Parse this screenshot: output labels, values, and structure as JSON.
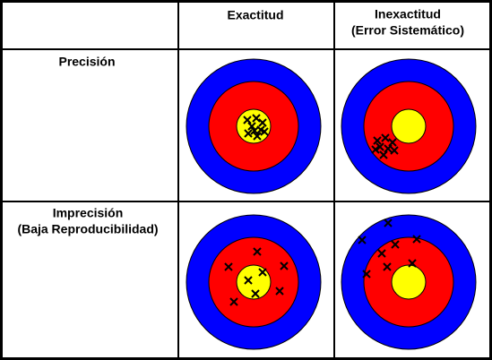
{
  "columns": [
    [
      "Exactitud"
    ],
    [
      "Inexactitud",
      "(Error Sistemático)"
    ]
  ],
  "rows": [
    [
      "Precisión"
    ],
    [
      "Imprecisión",
      "(Baja Reproducibilidad)"
    ]
  ]
}
